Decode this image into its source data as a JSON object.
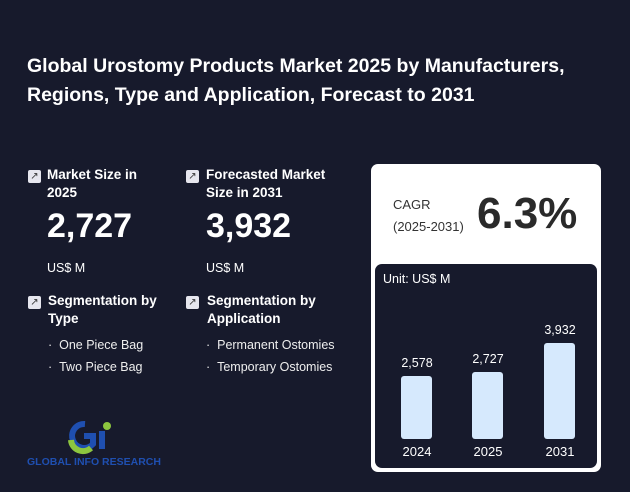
{
  "title": "Global Urostomy Products Market 2025 by Manufacturers, Regions, Type and Application, Forecast to 2031",
  "market_size": {
    "label": "Market Size in 2025",
    "value": "2,727",
    "unit": "US$ M",
    "icon": "arrow-up-right-icon"
  },
  "forecast": {
    "label": "Forecasted Market Size in 2031",
    "value": "3,932",
    "unit": "US$ M",
    "icon": "arrow-up-right-icon"
  },
  "seg_type": {
    "label": "Segmentation by Type",
    "items": [
      "One Piece Bag",
      "Two Piece Bag"
    ]
  },
  "seg_app": {
    "label": "Segmentation by Application",
    "items": [
      "Permanent Ostomies",
      "Temporary Ostomies"
    ]
  },
  "cagr": {
    "label": "CAGR",
    "period": "(2025-2031)",
    "value": "6.3%"
  },
  "chart_data": {
    "type": "bar",
    "unit_label": "Unit: US$ M",
    "categories": [
      "2024",
      "2025",
      "2031"
    ],
    "values": [
      2578,
      2727,
      3932
    ],
    "value_labels": [
      "2,578",
      "2,727",
      "3,932"
    ],
    "color": "#d6e9fd"
  },
  "logo": {
    "text": "GLOBAL INFO RESEARCH"
  }
}
